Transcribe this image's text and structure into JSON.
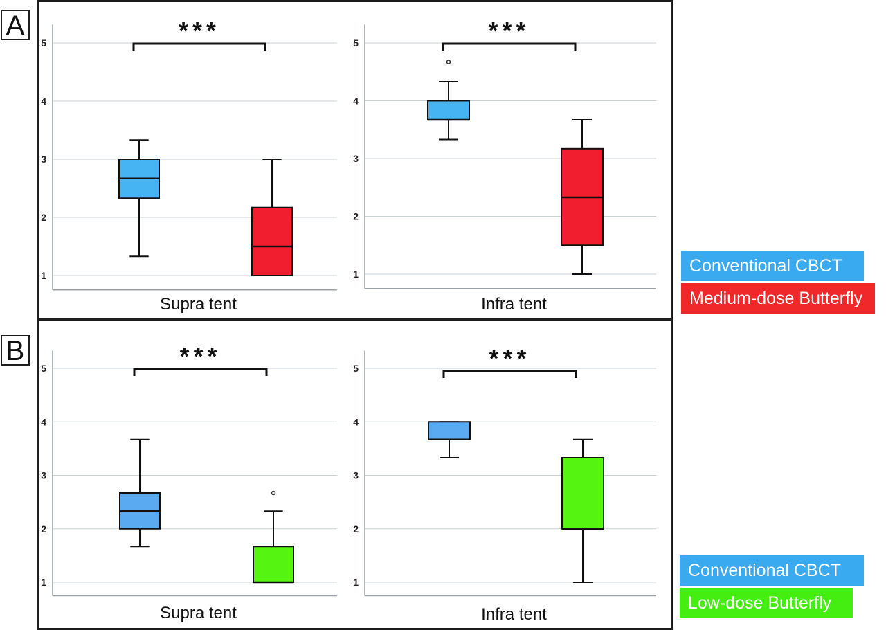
{
  "panels": [
    {
      "letter": "A"
    },
    {
      "letter": "B"
    }
  ],
  "legends": [
    {
      "items": [
        {
          "label": "Conventional CBCT",
          "color": "#3aaaf0"
        },
        {
          "label": "Medium-dose Butterfly",
          "color": "#f0282a"
        }
      ]
    },
    {
      "items": [
        {
          "label": "Conventional CBCT",
          "color": "#3aaaf0"
        },
        {
          "label": "Low-dose Butterfly",
          "color": "#44ee11"
        }
      ]
    }
  ],
  "chart_data": [
    {
      "type": "box",
      "panel": "A",
      "xlabel": "Supra tent",
      "ylim": [
        0.8,
        5.2
      ],
      "yticks": [
        1,
        2,
        3,
        4,
        5
      ],
      "grid": true,
      "significance": "***",
      "boxes": [
        {
          "whisker_low": 1.33,
          "q1": 2.33,
          "median": 2.67,
          "q3": 3.0,
          "whisker_high": 3.33,
          "outliers": [],
          "color": "#46b3f3"
        },
        {
          "whisker_low": 1.0,
          "q1": 1.0,
          "median": 1.5,
          "q3": 2.17,
          "whisker_high": 3.0,
          "outliers": [],
          "color": "#f01e2e"
        }
      ]
    },
    {
      "type": "box",
      "panel": "A",
      "xlabel": "Infra tent",
      "ylim": [
        0.8,
        5.2
      ],
      "yticks": [
        1,
        2,
        3,
        4,
        5
      ],
      "grid": true,
      "significance": "***",
      "boxes": [
        {
          "whisker_low": 3.33,
          "q1": 3.67,
          "median": 3.67,
          "q3": 4.0,
          "whisker_high": 4.33,
          "outliers": [
            4.67
          ],
          "color": "#46b3f3"
        },
        {
          "whisker_low": 1.0,
          "q1": 1.5,
          "median": 2.33,
          "q3": 3.17,
          "whisker_high": 3.67,
          "outliers": [],
          "color": "#f01e2e"
        }
      ]
    },
    {
      "type": "box",
      "panel": "B",
      "xlabel": "Supra tent",
      "ylim": [
        0.8,
        5.2
      ],
      "yticks": [
        1,
        2,
        3,
        4,
        5
      ],
      "grid": true,
      "significance": "***",
      "boxes": [
        {
          "whisker_low": 1.67,
          "q1": 2.0,
          "median": 2.33,
          "q3": 2.67,
          "whisker_high": 3.67,
          "outliers": [],
          "color": "#5aaaf2"
        },
        {
          "whisker_low": 1.0,
          "q1": 1.0,
          "median": 1.0,
          "q3": 1.67,
          "whisker_high": 2.33,
          "outliers": [
            2.67
          ],
          "color": "#55f511"
        }
      ]
    },
    {
      "type": "box",
      "panel": "B",
      "xlabel": "Infra tent",
      "ylim": [
        0.8,
        5.2
      ],
      "yticks": [
        1,
        2,
        3,
        4,
        5
      ],
      "grid": true,
      "significance": "***",
      "boxes": [
        {
          "whisker_low": 3.33,
          "q1": 3.67,
          "median": 3.67,
          "q3": 4.0,
          "whisker_high": 4.0,
          "outliers": [],
          "color": "#5aaaf2"
        },
        {
          "whisker_low": 1.0,
          "q1": 2.0,
          "median": 2.0,
          "q3": 3.33,
          "whisker_high": 3.67,
          "outliers": [],
          "color": "#55f511"
        }
      ]
    }
  ]
}
